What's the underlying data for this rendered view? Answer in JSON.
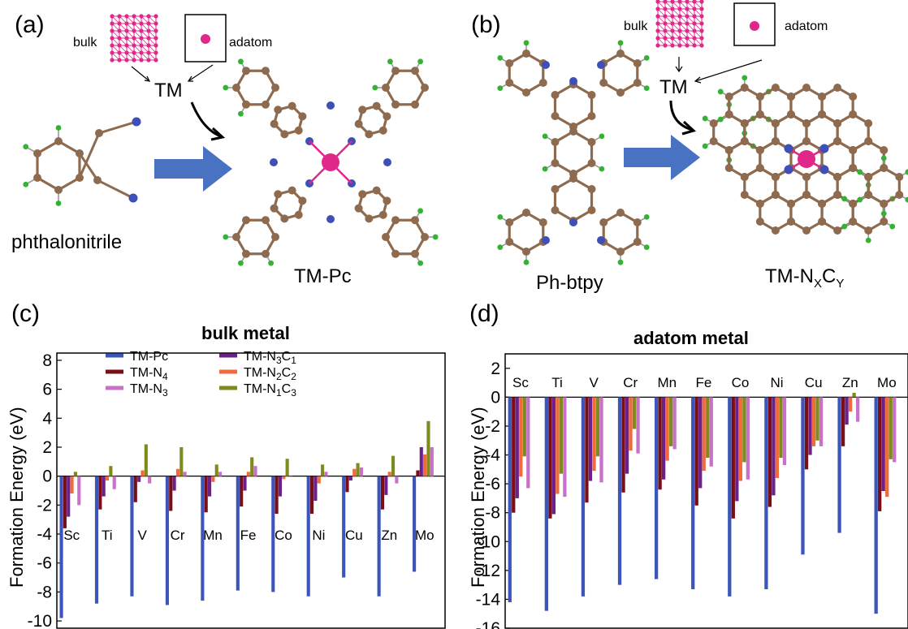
{
  "panels": {
    "a": {
      "label": "(a)",
      "bulk": "bulk",
      "adatom": "adatom",
      "tm": "TM",
      "reactant": "phthalonitrile",
      "product": "TM-Pc"
    },
    "b": {
      "label": "(b)",
      "bulk": "bulk",
      "adatom": "adatom",
      "tm": "TM",
      "reactant": "Ph-btpy",
      "product_main": "TM-N",
      "product_sub1": "X",
      "product_mid": "C",
      "product_sub2": "Y"
    },
    "c": {
      "label": "(c)"
    },
    "d": {
      "label": "(d)"
    }
  },
  "colors": {
    "TM-Pc": "#3b55b8",
    "TM-N4": "#7a0e17",
    "TM-N3": "#c772c8",
    "TM-N3C1": "#6b2189",
    "TM-N2C2": "#f26a3c",
    "TM-N1C3": "#7f8a1c",
    "carbon": "#8e6b4f",
    "nitrogen": "#3f4fb8",
    "hydrogen": "#34b233",
    "metal": "#e0278a",
    "arrow": "#4a72c2"
  },
  "chart_data": [
    {
      "type": "bar",
      "title": "bulk metal",
      "ylabel": "Formation Energy (eV)",
      "ylim": [
        -10.5,
        8.5
      ],
      "yticks": [
        8,
        6,
        4,
        2,
        0,
        -2,
        -4,
        -6,
        -8,
        -10
      ],
      "categories": [
        "Sc",
        "Ti",
        "V",
        "Cr",
        "Mn",
        "Fe",
        "Co",
        "Ni",
        "Cu",
        "Zn",
        "Mo"
      ],
      "legend_placement": "top-center",
      "series": [
        {
          "name": "TM-Pc",
          "label_main": "TM-Pc",
          "sub1": "",
          "mid": "",
          "sub2": "",
          "values": [
            -9.8,
            -8.8,
            -8.3,
            -8.9,
            -8.6,
            -7.9,
            -8.0,
            -8.3,
            -7.0,
            -8.3,
            -6.6
          ]
        },
        {
          "name": "TM-N4",
          "label_main": "TM-N",
          "sub1": "4",
          "mid": "",
          "sub2": "",
          "values": [
            -3.6,
            -2.3,
            -1.8,
            -2.4,
            -2.5,
            -2.1,
            -2.6,
            -2.6,
            -1.1,
            -2.3,
            0.4
          ]
        },
        {
          "name": "TM-N3C1",
          "label_main": "TM-N",
          "sub1": "3",
          "mid": "C",
          "sub2": "1",
          "values": [
            -2.8,
            -1.4,
            -0.4,
            -1.0,
            -1.4,
            -1.0,
            -1.4,
            -1.7,
            -0.3,
            -1.3,
            2.0
          ]
        },
        {
          "name": "TM-N2C2",
          "label_main": "TM-N",
          "sub1": "2",
          "mid": "C",
          "sub2": "2",
          "values": [
            -1.2,
            -0.3,
            0.4,
            0.5,
            -0.4,
            0.3,
            -0.2,
            -0.5,
            0.5,
            0.3,
            1.5
          ]
        },
        {
          "name": "TM-N1C3",
          "label_main": "TM-N",
          "sub1": "1",
          "mid": "C",
          "sub2": "3",
          "values": [
            0.3,
            0.7,
            2.2,
            2.0,
            0.8,
            1.3,
            1.2,
            0.8,
            0.9,
            1.4,
            3.8
          ]
        },
        {
          "name": "TM-N3",
          "label_main": "TM-N",
          "sub1": "3",
          "mid": "",
          "sub2": "",
          "values": [
            -2.0,
            -0.9,
            -0.5,
            0.3,
            0.3,
            0.7,
            0.0,
            0.3,
            0.6,
            -0.5,
            2.0
          ]
        }
      ]
    },
    {
      "type": "bar",
      "title": "adatom metal",
      "ylabel": "Formation Energy (eV)",
      "ylim": [
        -16,
        3
      ],
      "yticks": [
        2,
        0,
        -2,
        -4,
        -6,
        -8,
        -10,
        -12,
        -14,
        -16
      ],
      "categories": [
        "Sc",
        "Ti",
        "V",
        "Cr",
        "Mn",
        "Fe",
        "Co",
        "Ni",
        "Cu",
        "Zn",
        "Mo"
      ],
      "series": [
        {
          "name": "TM-Pc",
          "values": [
            -14.2,
            -14.8,
            -13.8,
            -13.0,
            -12.6,
            -13.3,
            -13.8,
            -13.3,
            -10.9,
            -9.4,
            -15.0
          ]
        },
        {
          "name": "TM-N4",
          "values": [
            -8.0,
            -8.4,
            -7.3,
            -6.6,
            -6.4,
            -7.5,
            -8.4,
            -7.6,
            -5.0,
            -3.4,
            -7.9
          ]
        },
        {
          "name": "TM-N3C1",
          "values": [
            -7.0,
            -8.1,
            -5.8,
            -5.3,
            -5.7,
            -6.3,
            -7.2,
            -6.8,
            -4.0,
            -1.9,
            -6.5
          ]
        },
        {
          "name": "TM-N2C2",
          "values": [
            -5.5,
            -6.7,
            -5.1,
            -3.7,
            -4.4,
            -5.1,
            -5.8,
            -5.6,
            -3.4,
            -1.0,
            -6.9
          ]
        },
        {
          "name": "TM-N1C3",
          "values": [
            -4.1,
            -5.3,
            -4.1,
            -2.2,
            -3.4,
            -4.2,
            -4.5,
            -4.2,
            -3.0,
            0.3,
            -4.3
          ]
        },
        {
          "name": "TM-N3",
          "values": [
            -6.3,
            -6.9,
            -5.9,
            -3.9,
            -3.6,
            -4.8,
            -5.7,
            -4.7,
            -3.4,
            -1.7,
            -4.5
          ]
        }
      ]
    }
  ]
}
